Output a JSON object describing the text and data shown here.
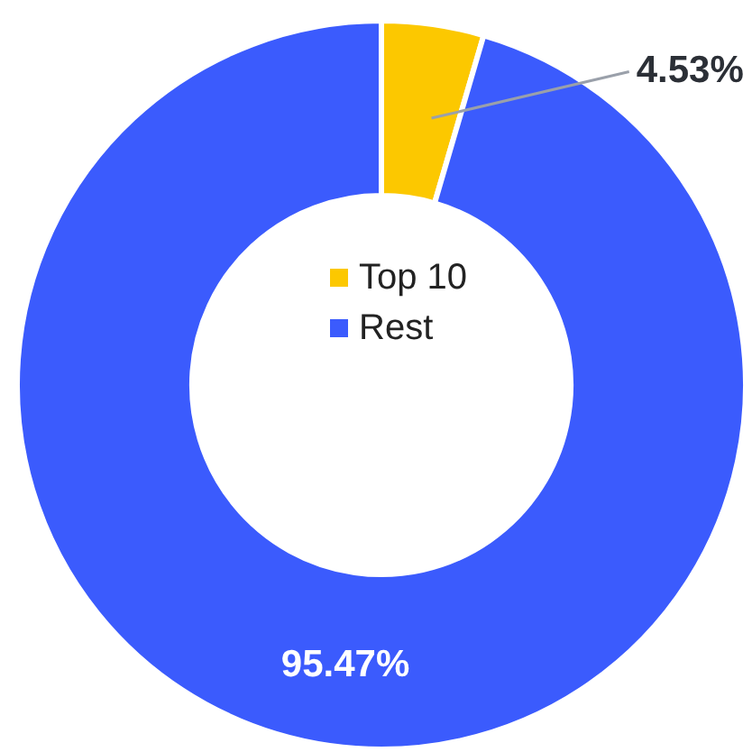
{
  "chart_data": {
    "type": "donut",
    "categories": [
      "Top 10",
      "Rest"
    ],
    "values": [
      4.53,
      95.47
    ],
    "colors": [
      "#fcc800",
      "#3b5bfd"
    ],
    "value_labels": [
      "4.53%",
      "95.47%"
    ],
    "legend": "center"
  }
}
